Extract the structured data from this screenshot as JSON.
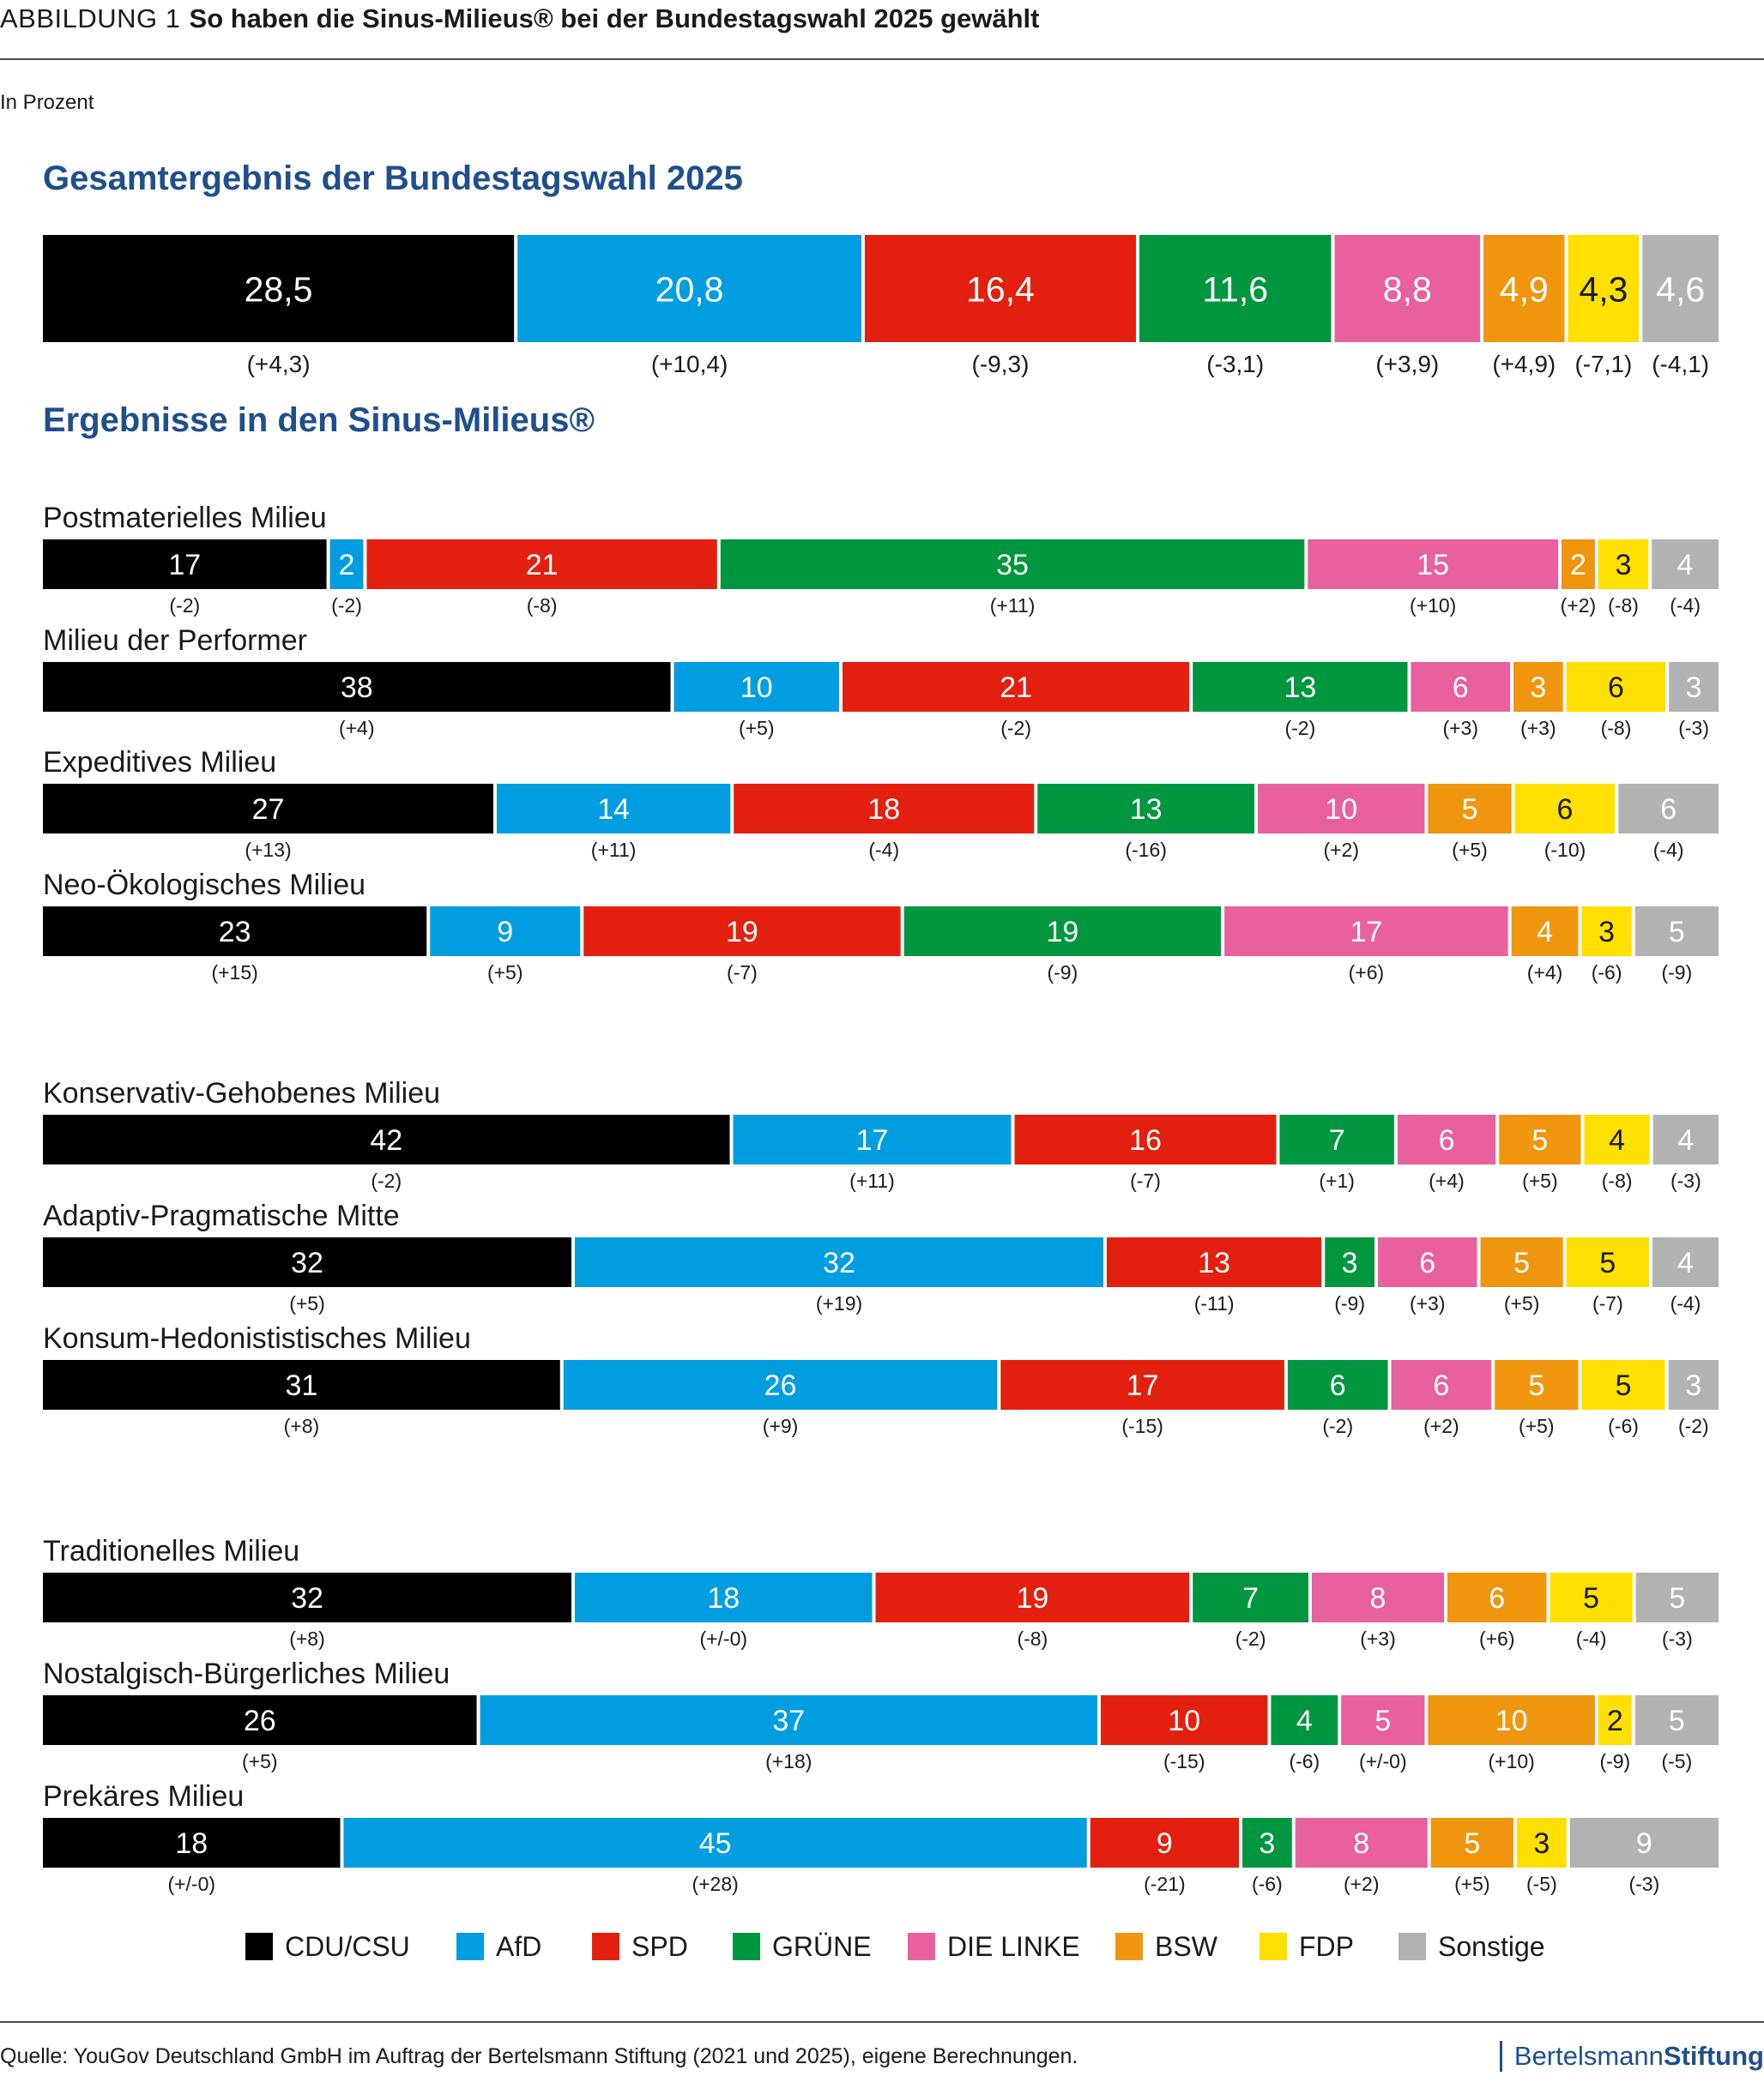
{
  "header": {
    "label": "ABBILDUNG 1",
    "title": "So haben die Sinus-Milieus® bei der Bundestagswahl 2025 gewählt"
  },
  "unit": "In Prozent",
  "sections": {
    "overall": "Gesamtergebnis der Bundestagswahl 2025",
    "milieus": "Ergebnisse in den Sinus-Milieus®"
  },
  "colors": {
    "CDU/CSU": "#000000",
    "AfD": "#009ee0",
    "SPD": "#e3200f",
    "GRÜNE": "#00963f",
    "DIE LINKE": "#e9609e",
    "BSW": "#f0960e",
    "FDP": "#ffe000",
    "Sonstige": "#b2b2b2"
  },
  "chart_data": {
    "type": "bar",
    "orientation": "horizontal-stacked-100",
    "parties": [
      "CDU/CSU",
      "AfD",
      "SPD",
      "GRÜNE",
      "DIE LINKE",
      "BSW",
      "FDP",
      "Sonstige"
    ],
    "overall": {
      "name": "Gesamtergebnis der Bundestagswahl 2025",
      "labels": [
        "28,5",
        "20,8",
        "16,4",
        "11,6",
        "8,8",
        "4,9",
        "4,3",
        "4,6"
      ],
      "values": [
        28.5,
        20.8,
        16.4,
        11.6,
        8.8,
        4.9,
        4.3,
        4.6
      ],
      "changes": [
        "(+4,3)",
        "(+10,4)",
        "(-9,3)",
        "(-3,1)",
        "(+3,9)",
        "(+4,9)",
        "(-7,1)",
        "(-4,1)"
      ]
    },
    "milieus": [
      {
        "name": "Postmaterielles Milieu",
        "values": [
          17,
          2,
          21,
          35,
          15,
          2,
          3,
          4
        ],
        "changes": [
          "(-2)",
          "(-2)",
          "(-8)",
          "(+11)",
          "(+10)",
          "(+2)",
          "(-8)",
          "(-4)"
        ]
      },
      {
        "name": "Milieu der Performer",
        "values": [
          38,
          10,
          21,
          13,
          6,
          3,
          6,
          3
        ],
        "changes": [
          "(+4)",
          "(+5)",
          "(-2)",
          "(-2)",
          "(+3)",
          "(+3)",
          "(-8)",
          "(-3)"
        ]
      },
      {
        "name": "Expeditives Milieu",
        "values": [
          27,
          14,
          18,
          13,
          10,
          5,
          6,
          6
        ],
        "changes": [
          "(+13)",
          "(+11)",
          "(-4)",
          "(-16)",
          "(+2)",
          "(+5)",
          "(-10)",
          "(-4)"
        ]
      },
      {
        "name": "Neo-Ökologisches Milieu",
        "values": [
          23,
          9,
          19,
          19,
          17,
          4,
          3,
          5
        ],
        "changes": [
          "(+15)",
          "(+5)",
          "(-7)",
          "(-9)",
          "(+6)",
          "(+4)",
          "(-6)",
          "(-9)"
        ]
      },
      {
        "name": "Konservativ-Gehobenes Milieu",
        "values": [
          42,
          17,
          16,
          7,
          6,
          5,
          4,
          4
        ],
        "changes": [
          "(-2)",
          "(+11)",
          "(-7)",
          "(+1)",
          "(+4)",
          "(+5)",
          "(-8)",
          "(-3)"
        ]
      },
      {
        "name": "Adaptiv-Pragmatische Mitte",
        "values": [
          32,
          32,
          13,
          3,
          6,
          5,
          5,
          4
        ],
        "changes": [
          "(+5)",
          "(+19)",
          "(-11)",
          "(-9)",
          "(+3)",
          "(+5)",
          "(-7)",
          "(-4)"
        ]
      },
      {
        "name": "Konsum-Hedonististisches Milieu",
        "values": [
          31,
          26,
          17,
          6,
          6,
          5,
          5,
          3
        ],
        "changes": [
          "(+8)",
          "(+9)",
          "(-15)",
          "(-2)",
          "(+2)",
          "(+5)",
          "(-6)",
          "(-2)"
        ]
      },
      {
        "name": "Traditionelles Milieu",
        "values": [
          32,
          18,
          19,
          7,
          8,
          6,
          5,
          5
        ],
        "changes": [
          "(+8)",
          "(+/-0)",
          "(-8)",
          "(-2)",
          "(+3)",
          "(+6)",
          "(-4)",
          "(-3)"
        ]
      },
      {
        "name": "Nostalgisch-Bürgerliches Milieu",
        "values": [
          26,
          37,
          10,
          4,
          5,
          10,
          2,
          5
        ],
        "changes": [
          "(+5)",
          "(+18)",
          "(-15)",
          "(-6)",
          "(+/-0)",
          "(+10)",
          "(-9)",
          "(-5)"
        ]
      },
      {
        "name": "Prekäres Milieu",
        "values": [
          18,
          45,
          9,
          3,
          8,
          5,
          3,
          9
        ],
        "changes": [
          "(+/-0)",
          "(+28)",
          "(-21)",
          "(-6)",
          "(+2)",
          "(+5)",
          "(-5)",
          "(-3)"
        ]
      }
    ],
    "legend": [
      "CDU/CSU",
      "AfD",
      "SPD",
      "GRÜNE",
      "DIE LINKE",
      "BSW",
      "FDP",
      "Sonstige"
    ],
    "legend_position": "bottom"
  },
  "footer": {
    "source": "Quelle: YouGov Deutschland GmbH im Auftrag der Bertelsmann Stiftung (2021 und 2025), eigene Berechnungen.",
    "brand_part1": "Bertelsmann",
    "brand_part2": "Stiftung"
  }
}
